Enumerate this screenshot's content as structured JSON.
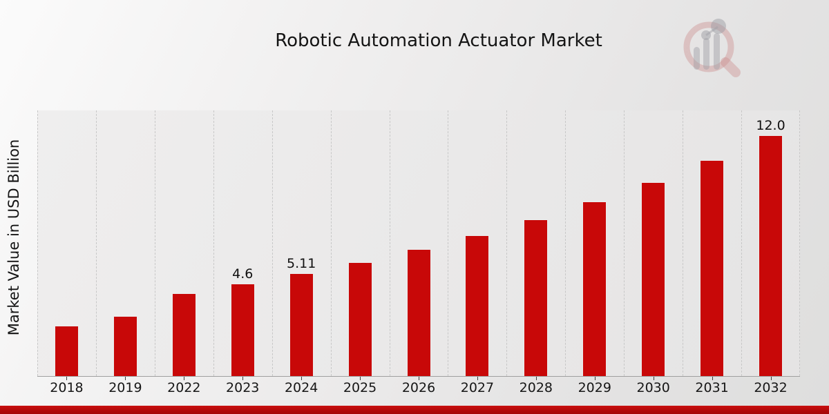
{
  "title": "Robotic Automation Actuator Market",
  "y_axis_label": "Market Value in USD Billion",
  "watermark": {
    "icon": "magnifier-bar-chart-logo",
    "ring_color": "rgba(200,130,130,0.40)",
    "bars_color": "rgba(150,150,158,0.45)"
  },
  "footer": {
    "accent_color": "#b30909"
  },
  "chart_data": {
    "type": "bar",
    "title": "Robotic Automation Actuator Market",
    "xlabel": "",
    "ylabel": "Market Value in USD Billion",
    "categories": [
      "2018",
      "2019",
      "2022",
      "2023",
      "2024",
      "2025",
      "2026",
      "2027",
      "2028",
      "2029",
      "2030",
      "2031",
      "2032"
    ],
    "values": [
      2.5,
      3.0,
      4.13,
      4.6,
      5.11,
      5.68,
      6.32,
      7.03,
      7.82,
      8.7,
      9.68,
      10.78,
      12.0
    ],
    "data_labels": [
      "",
      "",
      "",
      "4.6",
      "5.11",
      "",
      "",
      "",
      "",
      "",
      "",
      "",
      "12.0"
    ],
    "bar_color": "#c80808",
    "ylim": [
      0,
      13.24
    ],
    "grid": "vertical-dashed",
    "legend": "none",
    "unit": "USD Billion"
  }
}
